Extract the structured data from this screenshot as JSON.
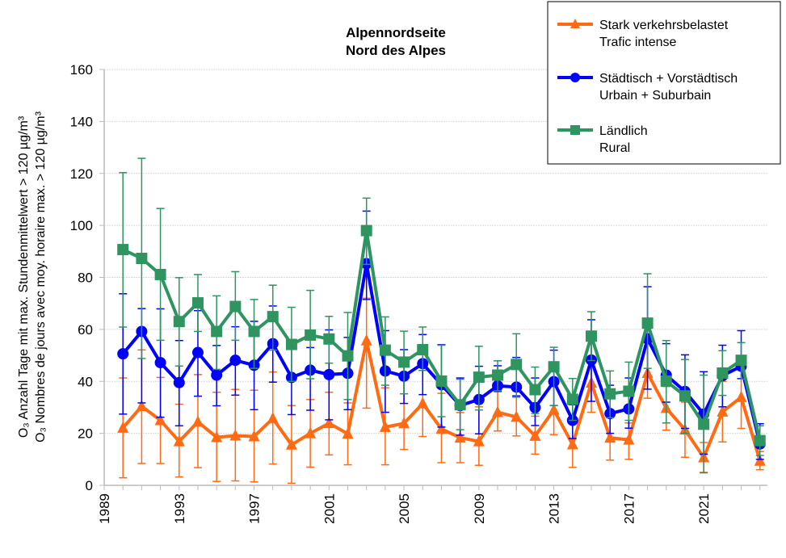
{
  "chart_data": {
    "type": "line",
    "title": [
      "Alpennordseite",
      "Nord des Alpes"
    ],
    "ylabel": [
      "O₃ Anzahl Tage mit max. Stundenmittelwert > 120 µg/m³",
      "O₃ Nombres de jours avec moy. horaire max. > 120 µg/m³"
    ],
    "xlabel": "",
    "ylim": [
      0,
      160
    ],
    "yticks": [
      "0",
      "20",
      "40",
      "60",
      "80",
      "100",
      "120",
      "140",
      "160"
    ],
    "xlim": [
      1989,
      2024.4
    ],
    "xticks": [
      "1989",
      "1993",
      "1997",
      "2001",
      "2005",
      "2009",
      "2013",
      "2017",
      "2021"
    ],
    "grid": true,
    "legend_position": "top-right",
    "x": [
      1990,
      1991,
      1992,
      1993,
      1994,
      1995,
      1996,
      1997,
      1998,
      1999,
      2000,
      2001,
      2002,
      2003,
      2004,
      2005,
      2006,
      2007,
      2008,
      2009,
      2010,
      2011,
      2012,
      2013,
      2014,
      2015,
      2016,
      2017,
      2018,
      2019,
      2020,
      2021,
      2022,
      2023,
      2024
    ],
    "series": [
      {
        "name": [
          "Stark verkehrsbelastet",
          "Trafic intense"
        ],
        "color": "#FF6A13",
        "marker": "triangle",
        "values": [
          22.1,
          30.4,
          25,
          16.9,
          24.4,
          18.5,
          19.1,
          18.8,
          25.7,
          15.6,
          20,
          23.9,
          19.8,
          55.7,
          22.4,
          23.8,
          31.5,
          21.7,
          18.3,
          16.9,
          28.1,
          26.3,
          19,
          29,
          15.7,
          39.4,
          18.3,
          17.5,
          43.2,
          29.7,
          21.4,
          10.7,
          28.3,
          33.9,
          9.4
        ],
        "error_low": [
          2.9,
          8.4,
          8.4,
          3.2,
          6.8,
          1.5,
          1.7,
          1.3,
          8.2,
          0.8,
          7,
          11.7,
          7.9,
          29.7,
          7.9,
          13.8,
          18.8,
          8.7,
          8.7,
          7.7,
          20.9,
          19,
          12,
          19.5,
          6.9,
          28.1,
          9.7,
          10,
          33.5,
          21.2,
          10.8,
          5,
          16.7,
          21.9,
          6
        ],
        "error_high": [
          41.3,
          52.1,
          41.5,
          31.2,
          42.6,
          35.8,
          36.9,
          36.6,
          43.6,
          30.7,
          33,
          35.8,
          31.7,
          72,
          37.5,
          42,
          44.2,
          35.4,
          28,
          30.2,
          36.4,
          34.4,
          26.6,
          40,
          24,
          49,
          26,
          24,
          55,
          38,
          32,
          16.5,
          40,
          46,
          13
        ]
      },
      {
        "name": [
          "Städtisch + Vorstädtisch",
          "Urbain + Suburbain"
        ],
        "color": "#0000FF",
        "marker": "circle",
        "values": [
          50.6,
          59.2,
          47.2,
          39.5,
          51.1,
          42.4,
          48.1,
          46.2,
          54.5,
          41.5,
          44.3,
          42.6,
          43.1,
          85.3,
          44,
          42,
          46.8,
          38.7,
          30.7,
          33,
          38.3,
          37.8,
          29.9,
          39.9,
          25,
          48.2,
          27.6,
          29.4,
          56.4,
          42.4,
          36.1,
          27.4,
          42.2,
          45.8,
          15.9
        ],
        "error_low": [
          27.4,
          31.7,
          26.2,
          22.9,
          34.3,
          30.6,
          34.7,
          29.1,
          39.7,
          27.2,
          28.9,
          25.2,
          29.1,
          71.5,
          28.1,
          31.5,
          34.9,
          22.4,
          19.3,
          19.8,
          36.1,
          34.4,
          23,
          30.7,
          18,
          32.3,
          20,
          22,
          37,
          32,
          21.9,
          12,
          30.2,
          41.1,
          10
        ],
        "error_high": [
          73.7,
          68,
          67.9,
          55.7,
          67.2,
          53.8,
          61,
          63.1,
          69,
          54,
          53,
          59.8,
          56.9,
          105.5,
          59.5,
          52.2,
          58,
          54.1,
          41.3,
          45.8,
          46,
          49.2,
          41.3,
          52,
          31,
          63.7,
          38.5,
          41.3,
          76.4,
          54.5,
          50.2,
          43.7,
          53.9,
          59.5,
          23.7
        ]
      },
      {
        "name": [
          "Ländlich",
          "Rural"
        ],
        "color": "#2E9560",
        "marker": "square",
        "values": [
          90.7,
          87.3,
          81.1,
          63,
          70.2,
          59.2,
          68.8,
          59.2,
          64.9,
          54.2,
          57.8,
          56.3,
          49.8,
          98,
          52,
          47.4,
          52.2,
          40.1,
          31,
          41.6,
          42.4,
          46.5,
          36.8,
          45.6,
          33.1,
          57.4,
          35.2,
          36.2,
          62.4,
          40.1,
          34.4,
          23.5,
          43.2,
          48.1,
          17.2
        ],
        "error_low": [
          60.9,
          48.8,
          55.8,
          45.9,
          59.2,
          44.6,
          55.8,
          45,
          52,
          40,
          41,
          47,
          33,
          85,
          38.5,
          35.2,
          44.2,
          26.4,
          21.4,
          29,
          36.4,
          33.9,
          27.6,
          30.7,
          25,
          48,
          26,
          25,
          45,
          24,
          20,
          4.8,
          34.6,
          40.9,
          11.5
        ],
        "error_high": [
          120.3,
          125.8,
          106.5,
          79.9,
          81.1,
          72.9,
          82.2,
          71.5,
          77,
          68.5,
          75,
          65,
          66.5,
          110.5,
          64.8,
          59.3,
          60.9,
          53.9,
          40.8,
          53.5,
          47.9,
          58.3,
          45.5,
          53.1,
          41.1,
          66.8,
          44,
          47.4,
          81.4,
          55.7,
          48.4,
          42.4,
          51.8,
          54.9,
          22.9
        ]
      }
    ]
  }
}
